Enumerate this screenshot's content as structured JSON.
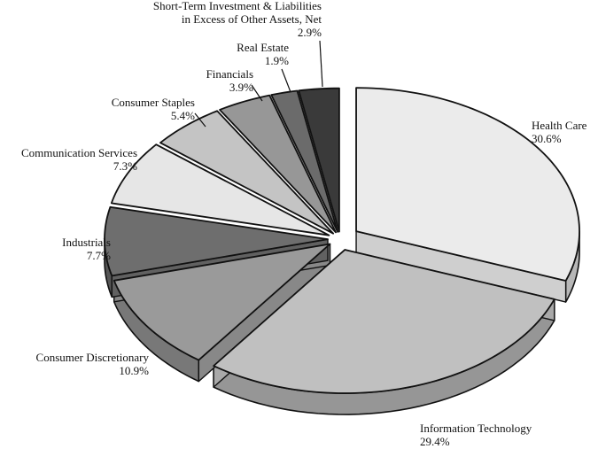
{
  "chart_data": {
    "type": "pie",
    "style": "3d-exploded",
    "slices": [
      {
        "name": "Health Care",
        "value": 30.6,
        "value_label": "30.6%",
        "color": "#ebebeb"
      },
      {
        "name": "Information Technology",
        "value": 29.4,
        "value_label": "29.4%",
        "color": "#c0c0c0"
      },
      {
        "name": "Consumer Discretionary",
        "value": 10.9,
        "value_label": "10.9%",
        "color": "#9a9a9a"
      },
      {
        "name": "Industrials",
        "value": 7.7,
        "value_label": "7.7%",
        "color": "#6e6e6e"
      },
      {
        "name": "Communication Services",
        "value": 7.3,
        "value_label": "7.3%",
        "color": "#e6e6e6"
      },
      {
        "name": "Consumer Staples",
        "value": 5.4,
        "value_label": "5.4%",
        "color": "#c4c4c4"
      },
      {
        "name": "Financials",
        "value": 3.9,
        "value_label": "3.9%",
        "color": "#979797"
      },
      {
        "name": "Real Estate",
        "value": 1.9,
        "value_label": "1.9%",
        "color": "#6b6b6b"
      },
      {
        "name": "Short-Term Investment & Liabilities in Excess of Other Assets, Net",
        "name_lines": [
          "Short-Term Investment & Liabilities",
          "in Excess of Other Assets, Net"
        ],
        "value": 2.9,
        "value_label": "2.9%",
        "color": "#3a3a3a"
      }
    ],
    "legend": "none",
    "labels": "outside-with-leader-lines"
  }
}
